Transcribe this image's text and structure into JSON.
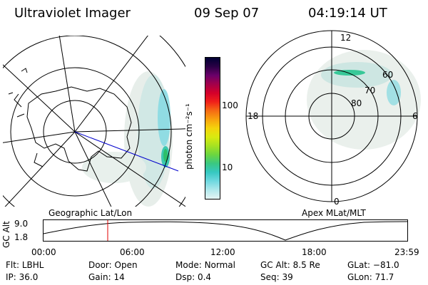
{
  "header": {
    "title": "Ultraviolet Imager",
    "date": "09 Sep 07",
    "time": "04:19:14 UT"
  },
  "left_map": {
    "caption": "Geographic Lat/Lon",
    "track_color": "#0000cc"
  },
  "right_map": {
    "caption": "Apex MLat/MLT",
    "mlt_labels": {
      "top": "12",
      "right": "6",
      "bottom": "0",
      "left": "18"
    },
    "mlat_labels": [
      "80",
      "70",
      "60"
    ]
  },
  "colorbar": {
    "unit_label": "photon cm⁻²s⁻¹",
    "ticks": [
      "100",
      "10"
    ],
    "colors": [
      "#000033",
      "#2a0045",
      "#6a006a",
      "#a3004a",
      "#d4002a",
      "#f0201a",
      "#f56a14",
      "#f8a20e",
      "#f4d40c",
      "#d8ea10",
      "#a6e222",
      "#6cd640",
      "#3ac882",
      "#36c8c2",
      "#6fd8e0",
      "#b0e8ec",
      "#e4f4f4"
    ]
  },
  "timeline": {
    "y_label": "GC Alt",
    "y_ticks": [
      "9.0",
      "1.8"
    ],
    "x_ticks": [
      "00:00",
      "06:00",
      "12:00",
      "18:00",
      "23:59"
    ],
    "marker_color": "#e00000"
  },
  "status": {
    "row1": [
      {
        "key": "Flt:",
        "val": "LBHL"
      },
      {
        "key": "Door:",
        "val": "Open"
      },
      {
        "key": "Mode:",
        "val": "Normal"
      },
      {
        "key": "GC Alt:",
        "val": "8.5 Re"
      },
      {
        "key": "GLat:",
        "val": "−81.0"
      }
    ],
    "row2": [
      {
        "key": "IP:",
        "val": "36.0"
      },
      {
        "key": "Gain:",
        "val": "14"
      },
      {
        "key": "Dsp:",
        "val": "0.4"
      },
      {
        "key": "Seq:",
        "val": "39"
      },
      {
        "key": "GLon:",
        "val": "71.7"
      }
    ]
  }
}
